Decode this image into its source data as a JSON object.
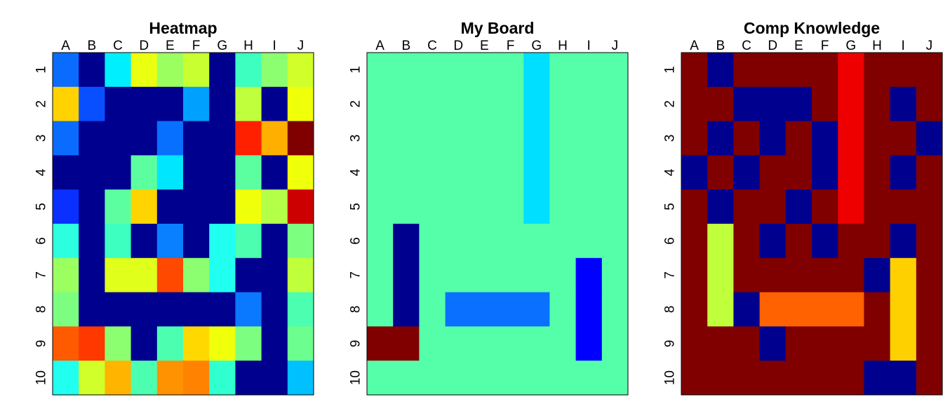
{
  "chart_data": [
    {
      "type": "heatmap",
      "title": "Heatmap",
      "columns": [
        "A",
        "B",
        "C",
        "D",
        "E",
        "F",
        "G",
        "H",
        "I",
        "J"
      ],
      "rows": [
        "1",
        "2",
        "3",
        "4",
        "5",
        "6",
        "7",
        "8",
        "9",
        "10"
      ],
      "cell_colors": [
        [
          "#0a6cff",
          "#00008f",
          "#00efff",
          "#ebff10",
          "#9cff60",
          "#c7ff30",
          "#00008f",
          "#3cffc0",
          "#8cff70",
          "#d0ff2a"
        ],
        [
          "#ffd200",
          "#0850ff",
          "#00008f",
          "#00008f",
          "#00008f",
          "#00a0ff",
          "#00008f",
          "#c0ff3c",
          "#00008f",
          "#f0ff0a"
        ],
        [
          "#0a6cff",
          "#00008f",
          "#00008f",
          "#00008f",
          "#0870ff",
          "#00008f",
          "#00008f",
          "#ff2000",
          "#ffaf00",
          "#800000"
        ],
        [
          "#00008f",
          "#00008f",
          "#00008f",
          "#5cffa0",
          "#00e6ff",
          "#00008f",
          "#00008f",
          "#5cffa0",
          "#00008f",
          "#f0ff0a"
        ],
        [
          "#0a30ff",
          "#00008f",
          "#5cffa0",
          "#ffd400",
          "#00008f",
          "#00008f",
          "#00008f",
          "#f0ff0a",
          "#b4ff48",
          "#cc0000"
        ],
        [
          "#2cffe0",
          "#00008f",
          "#3cffc0",
          "#00008f",
          "#0880ff",
          "#00008f",
          "#20fff0",
          "#4cffb0",
          "#00008f",
          "#7cff80"
        ],
        [
          "#9cff60",
          "#00008f",
          "#e0ff1a",
          "#e0ff1a",
          "#ff4800",
          "#8cff70",
          "#20fff0",
          "#00008f",
          "#00008f",
          "#c0ff3c"
        ],
        [
          "#7cff80",
          "#00008f",
          "#00008f",
          "#00008f",
          "#00008f",
          "#00008f",
          "#00008f",
          "#0a78ff",
          "#00008f",
          "#4cffb0"
        ],
        [
          "#ff5a00",
          "#ff3800",
          "#8cff70",
          "#00008f",
          "#4cffb0",
          "#ffd800",
          "#f0ff0a",
          "#7cff80",
          "#00008f",
          "#6cff90"
        ],
        [
          "#20fff0",
          "#d0ff2a",
          "#ffb400",
          "#4cffb0",
          "#ff9200",
          "#ff8200",
          "#30ffd0",
          "#00008f",
          "#00008f",
          "#00c0ff"
        ]
      ]
    },
    {
      "type": "heatmap",
      "title": "My Board",
      "columns": [
        "A",
        "B",
        "C",
        "D",
        "E",
        "F",
        "G",
        "H",
        "I",
        "J"
      ],
      "rows": [
        "1",
        "2",
        "3",
        "4",
        "5",
        "6",
        "7",
        "8",
        "9",
        "10"
      ],
      "cell_colors": [
        [
          "#55ffaa",
          "#55ffaa",
          "#55ffaa",
          "#55ffaa",
          "#55ffaa",
          "#55ffaa",
          "#00dfff",
          "#55ffaa",
          "#55ffaa",
          "#55ffaa"
        ],
        [
          "#55ffaa",
          "#55ffaa",
          "#55ffaa",
          "#55ffaa",
          "#55ffaa",
          "#55ffaa",
          "#00dfff",
          "#55ffaa",
          "#55ffaa",
          "#55ffaa"
        ],
        [
          "#55ffaa",
          "#55ffaa",
          "#55ffaa",
          "#55ffaa",
          "#55ffaa",
          "#55ffaa",
          "#00dfff",
          "#55ffaa",
          "#55ffaa",
          "#55ffaa"
        ],
        [
          "#55ffaa",
          "#55ffaa",
          "#55ffaa",
          "#55ffaa",
          "#55ffaa",
          "#55ffaa",
          "#00dfff",
          "#55ffaa",
          "#55ffaa",
          "#55ffaa"
        ],
        [
          "#55ffaa",
          "#55ffaa",
          "#55ffaa",
          "#55ffaa",
          "#55ffaa",
          "#55ffaa",
          "#00dfff",
          "#55ffaa",
          "#55ffaa",
          "#55ffaa"
        ],
        [
          "#55ffaa",
          "#00008f",
          "#55ffaa",
          "#55ffaa",
          "#55ffaa",
          "#55ffaa",
          "#55ffaa",
          "#55ffaa",
          "#55ffaa",
          "#55ffaa"
        ],
        [
          "#55ffaa",
          "#00008f",
          "#55ffaa",
          "#55ffaa",
          "#55ffaa",
          "#55ffaa",
          "#55ffaa",
          "#55ffaa",
          "#0000ff",
          "#55ffaa"
        ],
        [
          "#55ffaa",
          "#00008f",
          "#55ffaa",
          "#0a70ff",
          "#0a70ff",
          "#0a70ff",
          "#0a70ff",
          "#55ffaa",
          "#0000ff",
          "#55ffaa"
        ],
        [
          "#800000",
          "#800000",
          "#55ffaa",
          "#55ffaa",
          "#55ffaa",
          "#55ffaa",
          "#55ffaa",
          "#55ffaa",
          "#0000ff",
          "#55ffaa"
        ],
        [
          "#55ffaa",
          "#55ffaa",
          "#55ffaa",
          "#55ffaa",
          "#55ffaa",
          "#55ffaa",
          "#55ffaa",
          "#55ffaa",
          "#55ffaa",
          "#55ffaa"
        ]
      ]
    },
    {
      "type": "heatmap",
      "title": "Comp Knowledge",
      "columns": [
        "A",
        "B",
        "C",
        "D",
        "E",
        "F",
        "G",
        "H",
        "I",
        "J"
      ],
      "rows": [
        "1",
        "2",
        "3",
        "4",
        "5",
        "6",
        "7",
        "8",
        "9",
        "10"
      ],
      "cell_colors": [
        [
          "#800000",
          "#00008f",
          "#800000",
          "#800000",
          "#800000",
          "#800000",
          "#ee0000",
          "#800000",
          "#800000",
          "#800000"
        ],
        [
          "#800000",
          "#800000",
          "#00008f",
          "#00008f",
          "#00008f",
          "#800000",
          "#ee0000",
          "#800000",
          "#00008f",
          "#800000"
        ],
        [
          "#800000",
          "#00008f",
          "#800000",
          "#00008f",
          "#800000",
          "#00008f",
          "#ee0000",
          "#800000",
          "#800000",
          "#00008f"
        ],
        [
          "#00008f",
          "#800000",
          "#00008f",
          "#800000",
          "#800000",
          "#00008f",
          "#ee0000",
          "#800000",
          "#00008f",
          "#800000"
        ],
        [
          "#800000",
          "#00008f",
          "#800000",
          "#800000",
          "#00008f",
          "#800000",
          "#ee0000",
          "#800000",
          "#800000",
          "#800000"
        ],
        [
          "#800000",
          "#c0ff3c",
          "#800000",
          "#00008f",
          "#800000",
          "#00008f",
          "#800000",
          "#800000",
          "#00008f",
          "#800000"
        ],
        [
          "#800000",
          "#c0ff3c",
          "#800000",
          "#800000",
          "#800000",
          "#800000",
          "#800000",
          "#00008f",
          "#ffd000",
          "#800000"
        ],
        [
          "#800000",
          "#c0ff3c",
          "#00008f",
          "#ff6200",
          "#ff6200",
          "#ff6200",
          "#ff6200",
          "#800000",
          "#ffd000",
          "#800000"
        ],
        [
          "#800000",
          "#800000",
          "#800000",
          "#00008f",
          "#800000",
          "#800000",
          "#800000",
          "#800000",
          "#ffd000",
          "#800000"
        ],
        [
          "#800000",
          "#800000",
          "#800000",
          "#800000",
          "#800000",
          "#800000",
          "#800000",
          "#00008f",
          "#00008f",
          "#800000"
        ]
      ]
    }
  ]
}
